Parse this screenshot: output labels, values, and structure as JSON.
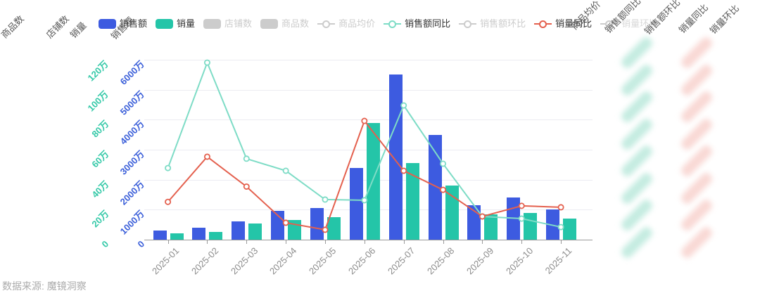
{
  "source_note": "数据来源: 魔镜洞察",
  "colors": {
    "sales_bar": "#3D5BE0",
    "volume_bar": "#24C5A8",
    "sales_yoy_line": "#7EDCC6",
    "volume_yoy_line": "#E4604E",
    "sales_axis_label": "#3B5FD9",
    "volume_axis_label": "#35C9A8",
    "disabled": "#CCCCCC",
    "grid": "#ECECF2",
    "axis_line": "#999999",
    "x_label": "#8C8C8C",
    "axis_title": "#595959",
    "legend_text": "#333333",
    "source_text": "#ABABAB",
    "blur_teal": "rgba(150,220,200,0.55)",
    "blur_red": "rgba(244,186,178,0.55)"
  },
  "legend": {
    "items": [
      {
        "label": "销售额",
        "icon": "rect",
        "color": "#3D5BE0",
        "active": true
      },
      {
        "label": "销量",
        "icon": "rect",
        "color": "#24C5A8",
        "active": true
      },
      {
        "label": "店铺数",
        "icon": "rect",
        "color": "#CCCCCC",
        "active": false
      },
      {
        "label": "商品数",
        "icon": "rect",
        "color": "#CCCCCC",
        "active": false
      },
      {
        "label": "商品均价",
        "icon": "line",
        "color": "#CCCCCC",
        "active": false
      },
      {
        "label": "销售额同比",
        "icon": "line",
        "color": "#7EDCC6",
        "active": true
      },
      {
        "label": "销售额环比",
        "icon": "line",
        "color": "#CCCCCC",
        "active": false
      },
      {
        "label": "销量同比",
        "icon": "line",
        "color": "#E4604E",
        "active": true
      },
      {
        "label": "销量环比",
        "icon": "line",
        "color": "#CCCCCC",
        "active": false
      }
    ]
  },
  "left_axis_titles": [
    "商品数",
    "店铺数",
    "销量",
    "销售额"
  ],
  "right_axis_titles": [
    "商品均价",
    "销售额同比",
    "销售额环比",
    "销量同比",
    "销量环比"
  ],
  "chart_data": {
    "type": "bar",
    "subtype": "combo-bar-line-dual-axis",
    "categories": [
      "2025-01",
      "2025-02",
      "2025-03",
      "2025-04",
      "2025-05",
      "2025-06",
      "2025-07",
      "2025-08",
      "2025-09",
      "2025-10",
      "2025-11"
    ],
    "grid": true,
    "legend_position": "top",
    "axes": {
      "sales_left": {
        "title": "销售额",
        "ticks": [
          "0",
          "1000万",
          "2000万",
          "3000万",
          "4000万",
          "5000万",
          "6000万"
        ],
        "range_wan": [
          0,
          6000
        ]
      },
      "volume_left": {
        "title": "销量",
        "ticks": [
          "0",
          "20万",
          "40万",
          "60万",
          "80万",
          "100万",
          "120万"
        ],
        "range_wan": [
          0,
          120
        ]
      },
      "sales_yoy_right": {
        "title": "销售额同比",
        "ticks_blurred": true
      },
      "volume_yoy_right": {
        "title": "销量同比",
        "ticks_blurred": true
      }
    },
    "series": [
      {
        "name": "销售额",
        "type": "bar",
        "axis": "sales_left",
        "unit": "万",
        "values": [
          300,
          400,
          600,
          950,
          1050,
          2400,
          5500,
          3500,
          1150,
          1400,
          1000
        ]
      },
      {
        "name": "销量",
        "type": "bar",
        "axis": "volume_left",
        "unit": "万",
        "values": [
          4,
          5,
          11,
          13,
          15,
          78,
          51,
          36,
          17,
          18,
          14
        ]
      },
      {
        "name": "销售额同比",
        "type": "line",
        "axis": "sales_yoy_right",
        "axis_ticks_blurred": true,
        "y_fraction_of_plot": [
          0.398,
          0.984,
          0.45,
          0.383,
          0.223,
          0.219,
          0.746,
          0.422,
          0.129,
          0.117,
          0.07
        ]
      },
      {
        "name": "销量同比",
        "type": "line",
        "axis": "volume_yoy_right",
        "axis_ticks_blurred": true,
        "y_fraction_of_plot": [
          0.21,
          0.461,
          0.295,
          0.094,
          0.055,
          0.66,
          0.383,
          0.277,
          0.129,
          0.188,
          0.18
        ]
      }
    ]
  }
}
